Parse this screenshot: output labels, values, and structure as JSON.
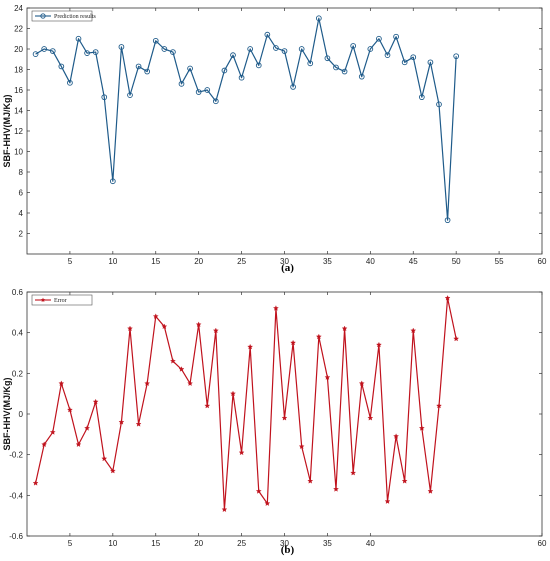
{
  "chart_data": [
    {
      "type": "line",
      "panel_label": "(a)",
      "ylabel": "SBF-HHV(MJ/Kg)",
      "xlabel": "",
      "xlim": [
        0,
        60
      ],
      "ylim": [
        0,
        24
      ],
      "xticks": [
        5,
        10,
        15,
        20,
        25,
        30,
        35,
        40,
        45,
        50,
        55,
        60
      ],
      "yticks": [
        2,
        4,
        6,
        8,
        10,
        12,
        14,
        16,
        18,
        20,
        22,
        24
      ],
      "grid": false,
      "legend_position": "top-left",
      "marker": "circle",
      "color": "#1f5b8a",
      "series": [
        {
          "name": "Prediction results",
          "x": [
            1,
            2,
            3,
            4,
            5,
            6,
            7,
            8,
            9,
            10,
            11,
            12,
            13,
            14,
            15,
            16,
            17,
            18,
            19,
            20,
            21,
            22,
            23,
            24,
            25,
            26,
            27,
            28,
            29,
            30,
            31,
            32,
            33,
            34,
            35,
            36,
            37,
            38,
            39,
            40,
            41,
            42,
            43,
            44,
            45,
            46,
            47,
            48,
            49,
            50
          ],
          "values": [
            19.5,
            20.0,
            19.8,
            18.3,
            16.7,
            21.0,
            19.6,
            19.7,
            15.3,
            7.1,
            20.2,
            15.5,
            18.3,
            17.8,
            20.8,
            20.0,
            19.7,
            16.6,
            18.1,
            15.8,
            16.0,
            14.9,
            17.9,
            19.4,
            17.2,
            20.0,
            18.4,
            21.4,
            20.1,
            19.8,
            16.3,
            20.0,
            18.6,
            23.0,
            19.1,
            18.2,
            17.8,
            20.3,
            17.3,
            20.0,
            21.0,
            19.4,
            21.2,
            18.7,
            19.2,
            15.3,
            18.7,
            14.6,
            3.3,
            19.3
          ]
        }
      ]
    },
    {
      "type": "line",
      "panel_label": "(b)",
      "ylabel": "SBF-HHV(MJ/Kg)",
      "xlabel": "",
      "xlim": [
        0,
        60
      ],
      "ylim": [
        -0.6,
        0.6
      ],
      "xticks": [
        5,
        10,
        15,
        20,
        25,
        30,
        35,
        40,
        60
      ],
      "yticks": [
        -0.6,
        -0.4,
        -0.2,
        0,
        0.2,
        0.4,
        0.6
      ],
      "ytick_labels": [
        "-0.6",
        "-0.4",
        "-0.2",
        "0",
        "0.2",
        "0.4",
        "0.6"
      ],
      "grid": false,
      "legend_position": "top-left",
      "marker": "star",
      "color": "#c0121d",
      "series": [
        {
          "name": "Error",
          "x": [
            1,
            2,
            3,
            4,
            5,
            6,
            7,
            8,
            9,
            10,
            11,
            12,
            13,
            14,
            15,
            16,
            17,
            18,
            19,
            20,
            21,
            22,
            23,
            24,
            25,
            26,
            27,
            28,
            29,
            30,
            31,
            32,
            33,
            34,
            35,
            36,
            37,
            38,
            39,
            40,
            41,
            42,
            43,
            44,
            45,
            46,
            47,
            48,
            49,
            50
          ],
          "values": [
            -0.34,
            -0.15,
            -0.09,
            0.15,
            0.02,
            -0.15,
            -0.07,
            0.06,
            -0.22,
            -0.28,
            -0.04,
            0.42,
            -0.05,
            0.15,
            0.48,
            0.43,
            0.26,
            0.22,
            0.15,
            0.44,
            0.04,
            0.41,
            -0.47,
            0.1,
            -0.19,
            0.33,
            -0.38,
            -0.44,
            0.52,
            -0.02,
            0.35,
            -0.16,
            -0.33,
            0.38,
            0.18,
            -0.37,
            0.42,
            -0.29,
            0.15,
            -0.02,
            0.34,
            -0.43,
            -0.11,
            -0.33,
            0.41,
            -0.07,
            -0.38,
            0.04,
            0.57,
            0.37
          ]
        }
      ]
    }
  ]
}
